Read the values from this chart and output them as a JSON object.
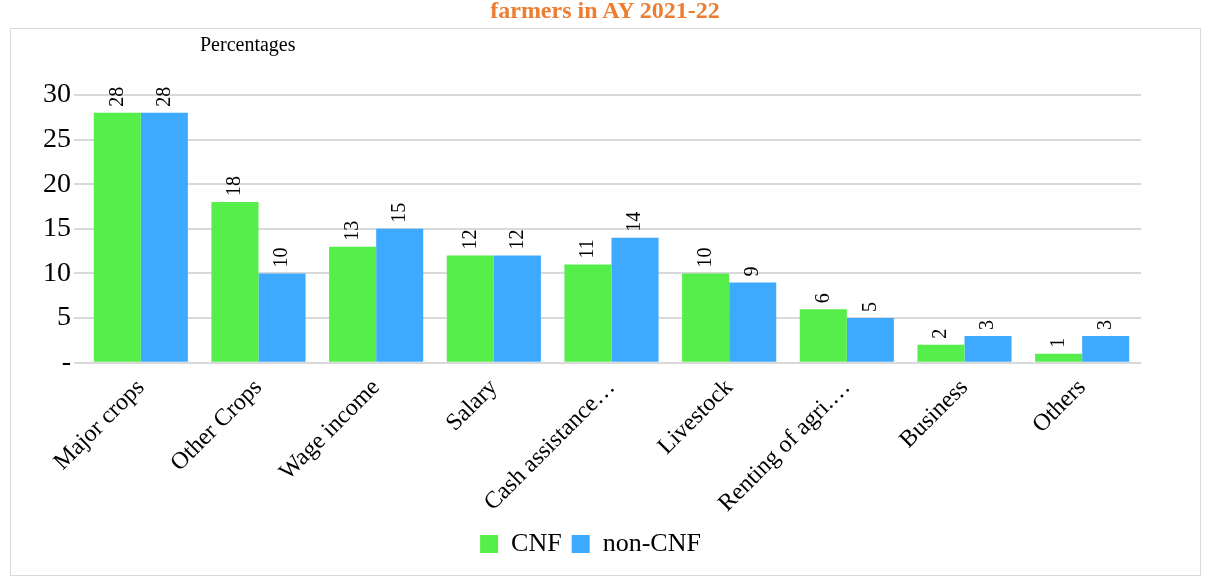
{
  "chart_data": {
    "type": "bar",
    "title": "farmers in AY 2021-22",
    "ylabel": "Percentages",
    "categories": [
      "Major crops",
      "Other Crops",
      "Wage income",
      "Salary",
      "Cash assistance…",
      "Livestock",
      "Renting of agri.…",
      "Business",
      "Others"
    ],
    "series": [
      {
        "name": "CNF",
        "color": "#55ee4a",
        "values": [
          28,
          18,
          13,
          12,
          11,
          10,
          6,
          2,
          1
        ]
      },
      {
        "name": "non-CNF",
        "color": "#3eaaff",
        "values": [
          28,
          10,
          15,
          12,
          14,
          9,
          5,
          3,
          3
        ]
      }
    ],
    "ylim": [
      0,
      30
    ],
    "yticks": [
      {
        "value": 0,
        "label": "-"
      },
      5,
      10,
      15,
      20,
      25,
      30
    ],
    "grid": "y",
    "legend": "bottom",
    "data_labels": true
  }
}
